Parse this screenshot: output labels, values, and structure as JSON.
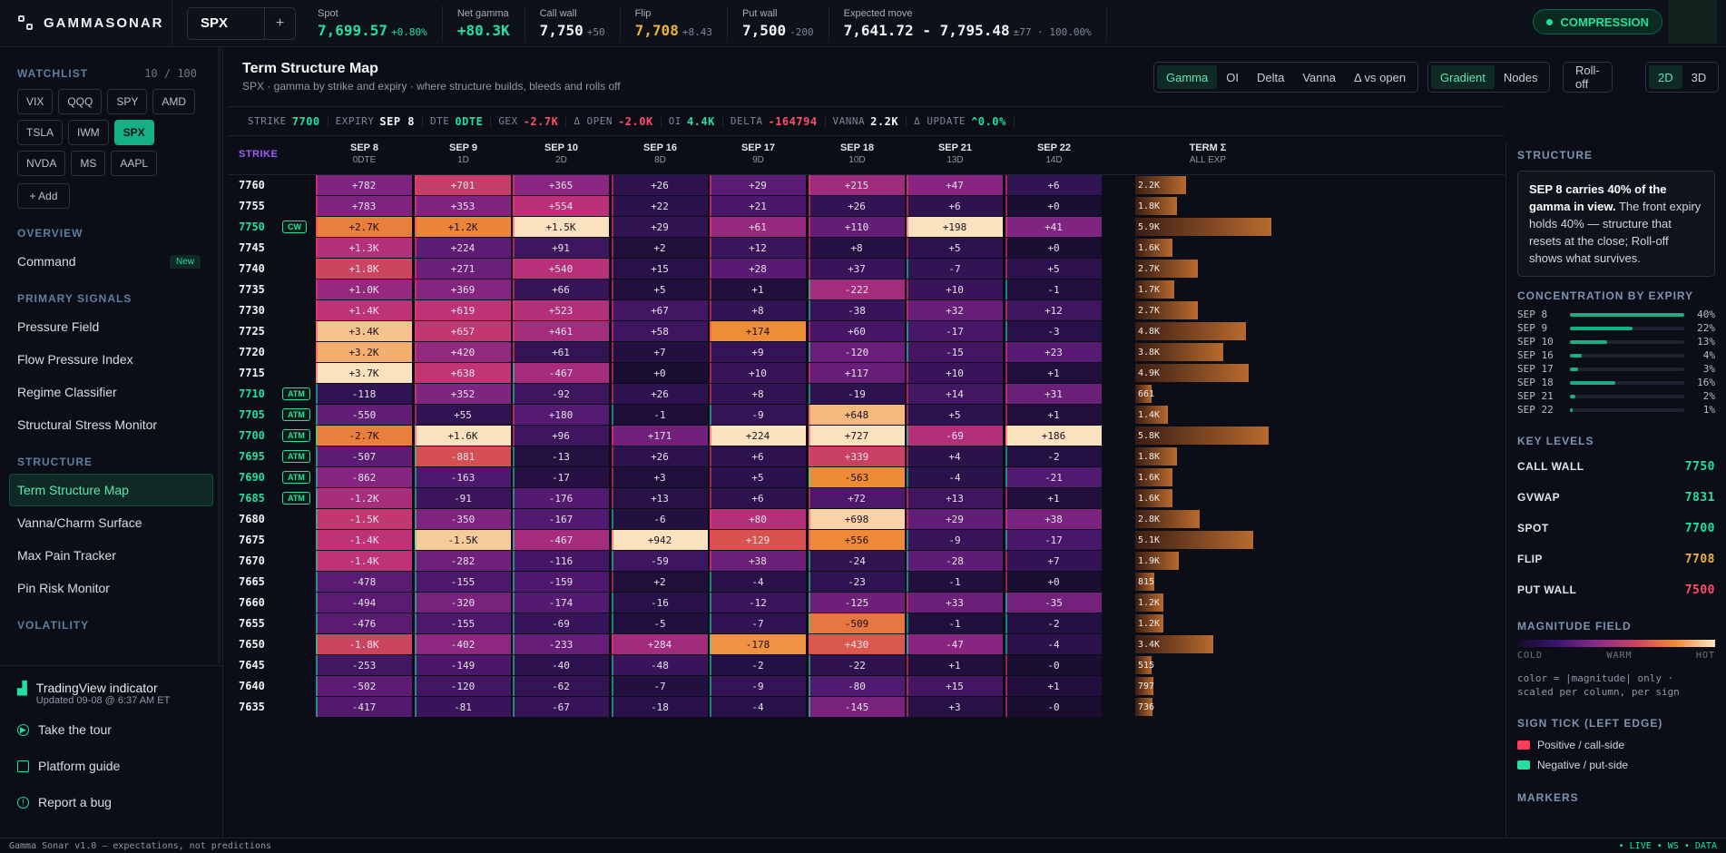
{
  "brand": {
    "name": "GAMMASONAR"
  },
  "ticker": {
    "symbol": "SPX",
    "add": "+"
  },
  "stats": [
    {
      "label": "Spot",
      "value": "7,699.57",
      "sub": "+0.80%",
      "color": "#21e0a0",
      "subcolor": "#21e0a0"
    },
    {
      "label": "Net gamma",
      "value": "+80.3K",
      "sub": "",
      "color": "#21e0a0",
      "subcolor": ""
    },
    {
      "label": "Call wall",
      "value": "7,750",
      "sub": "+50",
      "color": "#f2f4f8",
      "subcolor": "#7d869a"
    },
    {
      "label": "Flip",
      "value": "7,708",
      "sub": "+8.43",
      "color": "#f0b040",
      "subcolor": "#7d869a"
    },
    {
      "label": "Put wall",
      "value": "7,500",
      "sub": "-200",
      "color": "#f2f4f8",
      "subcolor": "#7d869a"
    },
    {
      "label": "Expected move",
      "value": "7,641.72 - 7,795.48",
      "sub": "±77 · 100.00%",
      "color": "#f2f4f8",
      "subcolor": "#7d869a"
    }
  ],
  "badge": "COMPRESSION",
  "sidebar": {
    "watchlist_label": "WATCHLIST",
    "watchlist_count": "10 / 100",
    "chips": [
      "VIX",
      "QQQ",
      "SPY",
      "AMD",
      "TSLA",
      "IWM",
      "SPX",
      "NVDA",
      "MS",
      "AAPL"
    ],
    "active_chip": "SPX",
    "add_label": "+ Add",
    "overview_label": "OVERVIEW",
    "command": "Command",
    "new_tag": "New",
    "primary_label": "PRIMARY SIGNALS",
    "primary": [
      "Pressure Field",
      "Flow Pressure Index",
      "Regime Classifier",
      "Structural Stress Monitor"
    ],
    "structure_label": "STRUCTURE",
    "structure": [
      "Term Structure Map",
      "Vanna/Charm Surface",
      "Max Pain Tracker",
      "Pin Risk Monitor"
    ],
    "volatility_label": "VOLATILITY",
    "tv_title": "TradingView indicator",
    "tv_sub": "Updated 09-08 @ 6:37 AM ET",
    "tour": "Take the tour",
    "guide": "Platform guide",
    "bug": "Report a bug"
  },
  "main": {
    "title": "Term Structure Map",
    "subtitle": "SPX · gamma by strike and expiry · where structure builds, bleeds and rolls off",
    "metric_tabs": [
      "Gamma",
      "OI",
      "Delta",
      "Vanna",
      "Δ vs open"
    ],
    "active_metric": "Gamma",
    "view_tabs": [
      "Gradient",
      "Nodes"
    ],
    "active_view": "Gradient",
    "rolloff": "Roll-off",
    "dim_tabs": [
      "2D",
      "3D"
    ],
    "active_dim": "2D",
    "ctx": [
      {
        "k": "STRIKE",
        "v": "7700",
        "c": "c-g"
      },
      {
        "k": "EXPIRY",
        "v": "SEP 8",
        "c": "c-w"
      },
      {
        "k": "DTE",
        "v": "0DTE",
        "c": "c-g"
      },
      {
        "k": "GEX",
        "v": "-2.7K",
        "c": "c-r"
      },
      {
        "k": "Δ OPEN",
        "v": "-2.0K",
        "c": "c-r"
      },
      {
        "k": "OI",
        "v": "4.4K",
        "c": "c-g"
      },
      {
        "k": "DELTA",
        "v": "-164794",
        "c": "c-r"
      },
      {
        "k": "VANNA",
        "v": "2.2K",
        "c": "c-w"
      },
      {
        "k": "Δ UPDATE",
        "v": "^0.0%",
        "c": "c-g"
      }
    ]
  },
  "grid": {
    "strike_header": "STRIKE",
    "columns": [
      {
        "date": "SEP 8",
        "dte": "0DTE"
      },
      {
        "date": "SEP 9",
        "dte": "1D"
      },
      {
        "date": "SEP 10",
        "dte": "2D"
      },
      {
        "date": "SEP 16",
        "dte": "8D"
      },
      {
        "date": "SEP 17",
        "dte": "9D"
      },
      {
        "date": "SEP 18",
        "dte": "10D"
      },
      {
        "date": "SEP 21",
        "dte": "13D"
      },
      {
        "date": "SEP 22",
        "dte": "14D"
      }
    ],
    "term_header": "TERM Σ",
    "term_sub": "ALL EXP",
    "rows": [
      {
        "strike": "7760",
        "tag": "",
        "cells": [
          "+782",
          "+701",
          "+365",
          "+26",
          "+29",
          "+215",
          "+47",
          "+6"
        ],
        "term": "2.2K",
        "tv": 2.2
      },
      {
        "strike": "7755",
        "tag": "",
        "cells": [
          "+783",
          "+353",
          "+554",
          "+22",
          "+21",
          "+26",
          "+6",
          "+0"
        ],
        "term": "1.8K",
        "tv": 1.8
      },
      {
        "strike": "7750",
        "tag": "CW",
        "cells": [
          "+2.7K",
          "+1.2K",
          "+1.5K",
          "+29",
          "+61",
          "+110",
          "+198",
          "+41"
        ],
        "term": "5.9K",
        "tv": 5.9
      },
      {
        "strike": "7745",
        "tag": "",
        "cells": [
          "+1.3K",
          "+224",
          "+91",
          "+2",
          "+12",
          "+8",
          "+5",
          "+0"
        ],
        "term": "1.6K",
        "tv": 1.6
      },
      {
        "strike": "7740",
        "tag": "",
        "cells": [
          "+1.8K",
          "+271",
          "+540",
          "+15",
          "+28",
          "+37",
          "-7",
          "+5"
        ],
        "term": "2.7K",
        "tv": 2.7
      },
      {
        "strike": "7735",
        "tag": "",
        "cells": [
          "+1.0K",
          "+369",
          "+66",
          "+5",
          "+1",
          "-222",
          "+10",
          "-1"
        ],
        "term": "1.7K",
        "tv": 1.7
      },
      {
        "strike": "7730",
        "tag": "",
        "cells": [
          "+1.4K",
          "+619",
          "+523",
          "+67",
          "+8",
          "-38",
          "+32",
          "+12"
        ],
        "term": "2.7K",
        "tv": 2.7
      },
      {
        "strike": "7725",
        "tag": "",
        "cells": [
          "+3.4K",
          "+657",
          "+461",
          "+58",
          "+174",
          "+60",
          "-17",
          "-3"
        ],
        "term": "4.8K",
        "tv": 4.8
      },
      {
        "strike": "7720",
        "tag": "",
        "cells": [
          "+3.2K",
          "+420",
          "+61",
          "+7",
          "+9",
          "-120",
          "-15",
          "+23"
        ],
        "term": "3.8K",
        "tv": 3.8
      },
      {
        "strike": "7715",
        "tag": "",
        "cells": [
          "+3.7K",
          "+638",
          "-467",
          "+0",
          "+10",
          "+117",
          "+10",
          "+1"
        ],
        "term": "4.9K",
        "tv": 4.9
      },
      {
        "strike": "7710",
        "tag": "ATM",
        "cells": [
          "-118",
          "+352",
          "-92",
          "+26",
          "+8",
          "-19",
          "+14",
          "+31"
        ],
        "term": "661",
        "tv": 0.66
      },
      {
        "strike": "7705",
        "tag": "ATM",
        "cells": [
          "-550",
          "+55",
          "+180",
          "-1",
          "-9",
          "+648",
          "+5",
          "+1"
        ],
        "term": "1.4K",
        "tv": 1.4
      },
      {
        "strike": "7700",
        "tag": "ATM",
        "cells": [
          "-2.7K",
          "+1.6K",
          "+96",
          "+171",
          "+224",
          "+727",
          "-69",
          "+186"
        ],
        "term": "5.8K",
        "tv": 5.8
      },
      {
        "strike": "7695",
        "tag": "ATM",
        "cells": [
          "-507",
          "-881",
          "-13",
          "+26",
          "+6",
          "+339",
          "+4",
          "-2"
        ],
        "term": "1.8K",
        "tv": 1.8
      },
      {
        "strike": "7690",
        "tag": "ATM",
        "cells": [
          "-862",
          "-163",
          "-17",
          "+3",
          "+5",
          "-563",
          "-4",
          "-21"
        ],
        "term": "1.6K",
        "tv": 1.6
      },
      {
        "strike": "7685",
        "tag": "ATM",
        "cells": [
          "-1.2K",
          "-91",
          "-176",
          "+13",
          "+6",
          "+72",
          "+13",
          "+1"
        ],
        "term": "1.6K",
        "tv": 1.6
      },
      {
        "strike": "7680",
        "tag": "",
        "cells": [
          "-1.5K",
          "-350",
          "-167",
          "-6",
          "+80",
          "+698",
          "+29",
          "+38"
        ],
        "term": "2.8K",
        "tv": 2.8
      },
      {
        "strike": "7675",
        "tag": "",
        "cells": [
          "-1.4K",
          "-1.5K",
          "-467",
          "+942",
          "+129",
          "+556",
          "-9",
          "-17"
        ],
        "term": "5.1K",
        "tv": 5.1
      },
      {
        "strike": "7670",
        "tag": "",
        "cells": [
          "-1.4K",
          "-282",
          "-116",
          "-59",
          "+38",
          "-24",
          "-28",
          "+7"
        ],
        "term": "1.9K",
        "tv": 1.9
      },
      {
        "strike": "7665",
        "tag": "",
        "cells": [
          "-478",
          "-155",
          "-159",
          "+2",
          "-4",
          "-23",
          "-1",
          "+0"
        ],
        "term": "815",
        "tv": 0.82
      },
      {
        "strike": "7660",
        "tag": "",
        "cells": [
          "-494",
          "-320",
          "-174",
          "-16",
          "-12",
          "-125",
          "+33",
          "-35"
        ],
        "term": "1.2K",
        "tv": 1.2
      },
      {
        "strike": "7655",
        "tag": "",
        "cells": [
          "-476",
          "-155",
          "-69",
          "-5",
          "-7",
          "-509",
          "-1",
          "-2"
        ],
        "term": "1.2K",
        "tv": 1.2
      },
      {
        "strike": "7650",
        "tag": "",
        "cells": [
          "-1.8K",
          "-402",
          "-233",
          "+284",
          "-178",
          "+430",
          "-47",
          "-4"
        ],
        "term": "3.4K",
        "tv": 3.4
      },
      {
        "strike": "7645",
        "tag": "",
        "cells": [
          "-253",
          "-149",
          "-40",
          "-48",
          "-2",
          "-22",
          "+1",
          "-0"
        ],
        "term": "515",
        "tv": 0.52
      },
      {
        "strike": "7640",
        "tag": "",
        "cells": [
          "-502",
          "-120",
          "-62",
          "-7",
          "-9",
          "-80",
          "+15",
          "+1"
        ],
        "term": "797",
        "tv": 0.8
      },
      {
        "strike": "7635",
        "tag": "",
        "cells": [
          "-417",
          "-81",
          "-67",
          "-18",
          "-4",
          "-145",
          "+3",
          "-0"
        ],
        "term": "736",
        "tv": 0.74
      }
    ]
  },
  "right": {
    "structure_label": "STRUCTURE",
    "callout_bold": "SEP 8 carries 40% of the gamma in view.",
    "callout_rest": " The front expiry holds 40% — structure that resets at the close; Roll-off shows what survives.",
    "conc_label": "CONCENTRATION BY EXPIRY",
    "conc": [
      {
        "exp": "SEP 8",
        "pct": "40%",
        "v": 40
      },
      {
        "exp": "SEP 9",
        "pct": "22%",
        "v": 22
      },
      {
        "exp": "SEP 10",
        "pct": "13%",
        "v": 13
      },
      {
        "exp": "SEP 16",
        "pct": "4%",
        "v": 4
      },
      {
        "exp": "SEP 17",
        "pct": "3%",
        "v": 3
      },
      {
        "exp": "SEP 18",
        "pct": "16%",
        "v": 16
      },
      {
        "exp": "SEP 21",
        "pct": "2%",
        "v": 2
      },
      {
        "exp": "SEP 22",
        "pct": "1%",
        "v": 1
      }
    ],
    "key_label": "KEY LEVELS",
    "levels": [
      {
        "k": "CALL WALL",
        "v": "7750",
        "c": "#21e0a0"
      },
      {
        "k": "GVWAP",
        "v": "7831",
        "c": "#21e0a0"
      },
      {
        "k": "SPOT",
        "v": "7700",
        "c": "#21e0a0"
      },
      {
        "k": "FLIP",
        "v": "7708",
        "c": "#f0b040"
      },
      {
        "k": "PUT WALL",
        "v": "7500",
        "c": "#ff4d6d"
      }
    ],
    "mag_label": "MAGNITUDE FIELD",
    "legend": [
      "COLD",
      "WARM",
      "HOT"
    ],
    "mag_note": "color = |magnitude| only · scaled per column, per sign",
    "sign_label": "SIGN TICK (LEFT EDGE)",
    "pos": "Positive / call-side",
    "neg": "Negative / put-side",
    "markers_label": "MARKERS"
  },
  "footer": {
    "left": "Gamma Sonar v1.0 — expectations, not predictions",
    "right": "• LIVE • WS • DATA"
  }
}
